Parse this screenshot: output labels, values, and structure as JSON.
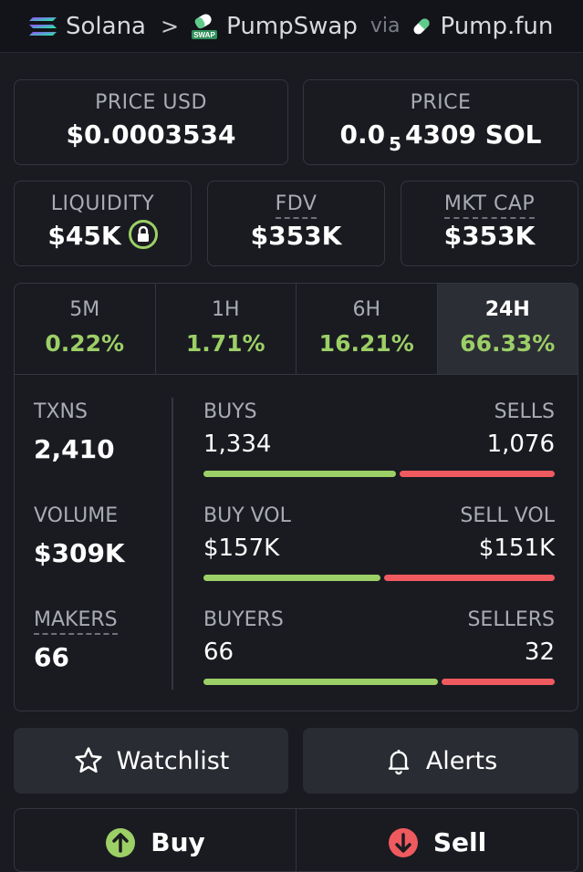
{
  "header": {
    "chain": "Solana",
    "dex": "PumpSwap",
    "dex_badge": "SWAP",
    "via": "via",
    "launchpad": "Pump.fun"
  },
  "price_usd": {
    "label": "PRICE USD",
    "value": "$0.0003534"
  },
  "price_native": {
    "label": "PRICE",
    "prefix": "0.0",
    "zeros": "5",
    "suffix": "4309 SOL"
  },
  "liquidity": {
    "label": "LIQUIDITY",
    "value": "$45K"
  },
  "fdv": {
    "label": "FDV",
    "value": "$353K"
  },
  "mkt_cap": {
    "label": "MKT CAP",
    "value": "$353K"
  },
  "periods": [
    {
      "label": "5M",
      "change": "0.22%"
    },
    {
      "label": "1H",
      "change": "1.71%"
    },
    {
      "label": "6H",
      "change": "16.21%"
    },
    {
      "label": "24H",
      "change": "66.33%"
    }
  ],
  "stats": {
    "txns": {
      "label": "TXNS",
      "value": "2,410"
    },
    "volume": {
      "label": "VOLUME",
      "value": "$309K"
    },
    "makers": {
      "label": "MAKERS",
      "value": "66"
    },
    "buys": {
      "label": "BUYS",
      "value": "1,334",
      "fraction": 0.5535
    },
    "sells": {
      "label": "SELLS",
      "value": "1,076"
    },
    "buy_vol": {
      "label": "BUY VOL",
      "value": "$157K",
      "fraction": 0.5097
    },
    "sell_vol": {
      "label": "SELL VOL",
      "value": "$151K"
    },
    "buyers": {
      "label": "BUYERS",
      "value": "66",
      "fraction": 0.6735
    },
    "sellers": {
      "label": "SELLERS",
      "value": "32"
    }
  },
  "actions": {
    "watchlist": "Watchlist",
    "alerts": "Alerts",
    "buy": "Buy",
    "sell": "Sell"
  },
  "colors": {
    "positive": "#9ccf66",
    "negative": "#ef5a5f",
    "background": "#1a1b21"
  }
}
